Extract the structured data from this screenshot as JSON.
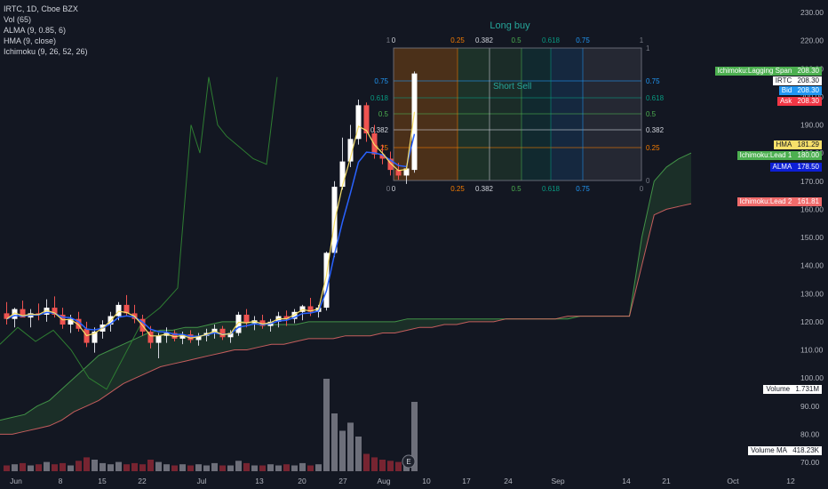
{
  "legend": {
    "symbol": "IRTC, 1D, Cboe BZX",
    "vol": "Vol (65)",
    "alma": "ALMA (9, 0.85, 6)",
    "hma": "HMA (9, close)",
    "ichimoku": "Ichimoku (9, 26, 52, 26)"
  },
  "fib": {
    "title": "Long buy",
    "short_label": "Short Sell",
    "top_labels": [
      "1",
      "0",
      "0.25",
      "0.382",
      "0.5",
      "0.618",
      "0.75",
      "1"
    ],
    "bottom_labels": [
      "0",
      "0",
      "0.25",
      "0.382",
      "0.5",
      "0.618",
      "0.75",
      "0"
    ],
    "left_labels": [
      "0.75",
      "0.618",
      "0.5",
      "0.382",
      "0.25"
    ],
    "right_labels": [
      "1",
      "0.75",
      "0.618",
      "0.5",
      "0.382",
      "0.25",
      "0"
    ],
    "colors": {
      "c025": "#f57c00",
      "c0382": "#d1d4dc",
      "c05": "#4caf50",
      "c0618": "#089981",
      "c075": "#2196f3",
      "c1": "#787b86"
    }
  },
  "tags": [
    {
      "label": "Ichimoku:Lagging Span",
      "value": "208.30",
      "bg": "#4caf50",
      "fg": "#ffffff"
    },
    {
      "label": "IRTC",
      "value": "208.30",
      "bg": "#ffffff",
      "fg": "#131722"
    },
    {
      "label": "Bid",
      "value": "208.30",
      "bg": "#2196f3",
      "fg": "#ffffff"
    },
    {
      "label": "Ask",
      "value": "208.30",
      "bg": "#f23645",
      "fg": "#ffffff"
    },
    {
      "label": "HMA",
      "value": "181.29",
      "bg": "#f7e06a",
      "fg": "#131722"
    },
    {
      "label": "Ichimoku:Lead 1",
      "value": "180.00",
      "bg": "#4caf50",
      "fg": "#ffffff"
    },
    {
      "label": "ALMA",
      "value": "178.50",
      "bg": "#0d1fd6",
      "fg": "#ffffff"
    },
    {
      "label": "Ichimoku:Lead 2",
      "value": "161.81",
      "bg": "#f06b6b",
      "fg": "#ffffff"
    },
    {
      "label": "Volume",
      "value": "1.731M",
      "bg": "#ffffff",
      "fg": "#131722"
    },
    {
      "label": "Volume MA",
      "value": "418.23K",
      "bg": "#ffffff",
      "fg": "#131722"
    }
  ],
  "chart_data": {
    "type": "candlestick",
    "title": "IRTC, 1D, Cboe BZX",
    "price_axis_ticks": [
      230,
      220,
      210,
      200,
      190,
      180,
      170,
      160,
      150,
      140,
      130,
      120,
      110,
      100,
      90,
      80,
      70
    ],
    "x_ticks": [
      "Jun",
      "8",
      "15",
      "22",
      "Jul",
      "13",
      "20",
      "27",
      "Aug",
      "10",
      "17",
      "24",
      "Sep",
      "14",
      "21",
      "Oct",
      "12"
    ],
    "event_marker": "E",
    "candles": [
      {
        "o": 123.0,
        "h": 127.0,
        "l": 119.0,
        "c": 121.0
      },
      {
        "o": 121.0,
        "h": 125.0,
        "l": 118.0,
        "c": 124.5
      },
      {
        "o": 124.5,
        "h": 127.5,
        "l": 122.0,
        "c": 121.5
      },
      {
        "o": 121.5,
        "h": 124.5,
        "l": 118.0,
        "c": 123.0
      },
      {
        "o": 123.0,
        "h": 126.5,
        "l": 120.5,
        "c": 122.5
      },
      {
        "o": 122.5,
        "h": 128.0,
        "l": 120.0,
        "c": 125.0
      },
      {
        "o": 125.0,
        "h": 129.0,
        "l": 121.5,
        "c": 122.5
      },
      {
        "o": 122.5,
        "h": 125.0,
        "l": 117.5,
        "c": 119.0
      },
      {
        "o": 119.0,
        "h": 122.5,
        "l": 116.0,
        "c": 121.0
      },
      {
        "o": 121.0,
        "h": 123.5,
        "l": 116.5,
        "c": 117.5
      },
      {
        "o": 117.5,
        "h": 120.0,
        "l": 111.0,
        "c": 112.5
      },
      {
        "o": 112.5,
        "h": 118.0,
        "l": 109.0,
        "c": 116.5
      },
      {
        "o": 116.5,
        "h": 120.5,
        "l": 114.0,
        "c": 119.0
      },
      {
        "o": 119.0,
        "h": 123.5,
        "l": 116.5,
        "c": 122.0
      },
      {
        "o": 122.0,
        "h": 127.0,
        "l": 120.5,
        "c": 126.0
      },
      {
        "o": 126.0,
        "h": 129.5,
        "l": 122.0,
        "c": 123.0
      },
      {
        "o": 123.0,
        "h": 126.0,
        "l": 119.5,
        "c": 121.0
      },
      {
        "o": 121.0,
        "h": 122.5,
        "l": 115.0,
        "c": 116.5
      },
      {
        "o": 116.5,
        "h": 118.5,
        "l": 110.5,
        "c": 112.5
      },
      {
        "o": 112.5,
        "h": 116.0,
        "l": 107.0,
        "c": 115.0
      },
      {
        "o": 115.0,
        "h": 118.0,
        "l": 112.5,
        "c": 116.0
      },
      {
        "o": 116.0,
        "h": 117.0,
        "l": 113.0,
        "c": 114.0
      },
      {
        "o": 114.0,
        "h": 116.5,
        "l": 112.0,
        "c": 115.5
      },
      {
        "o": 115.5,
        "h": 117.0,
        "l": 112.5,
        "c": 113.5
      },
      {
        "o": 113.5,
        "h": 116.0,
        "l": 111.5,
        "c": 115.0
      },
      {
        "o": 115.0,
        "h": 117.5,
        "l": 113.0,
        "c": 116.0
      },
      {
        "o": 116.0,
        "h": 119.0,
        "l": 114.0,
        "c": 117.5
      },
      {
        "o": 117.5,
        "h": 118.5,
        "l": 113.5,
        "c": 114.5
      },
      {
        "o": 114.5,
        "h": 117.0,
        "l": 112.5,
        "c": 116.0
      },
      {
        "o": 116.0,
        "h": 123.5,
        "l": 115.0,
        "c": 122.5
      },
      {
        "o": 122.5,
        "h": 124.5,
        "l": 118.0,
        "c": 119.5
      },
      {
        "o": 119.5,
        "h": 122.0,
        "l": 117.0,
        "c": 120.5
      },
      {
        "o": 120.5,
        "h": 122.5,
        "l": 117.5,
        "c": 118.5
      },
      {
        "o": 118.5,
        "h": 121.0,
        "l": 116.5,
        "c": 120.0
      },
      {
        "o": 120.0,
        "h": 123.5,
        "l": 118.0,
        "c": 122.0
      },
      {
        "o": 122.0,
        "h": 124.0,
        "l": 118.5,
        "c": 121.0
      },
      {
        "o": 121.0,
        "h": 124.5,
        "l": 119.5,
        "c": 123.5
      },
      {
        "o": 123.5,
        "h": 126.0,
        "l": 120.5,
        "c": 125.5
      },
      {
        "o": 125.5,
        "h": 128.5,
        "l": 122.0,
        "c": 123.5
      },
      {
        "o": 123.5,
        "h": 126.0,
        "l": 121.5,
        "c": 125.0
      },
      {
        "o": 125.0,
        "h": 145.0,
        "l": 124.0,
        "c": 144.5
      },
      {
        "o": 144.5,
        "h": 170.0,
        "l": 143.0,
        "c": 168.0
      },
      {
        "o": 168.0,
        "h": 185.5,
        "l": 167.0,
        "c": 177.0
      },
      {
        "o": 177.0,
        "h": 190.0,
        "l": 175.0,
        "c": 185.0
      },
      {
        "o": 185.0,
        "h": 199.0,
        "l": 183.0,
        "c": 197.0
      },
      {
        "o": 197.0,
        "h": 198.0,
        "l": 184.0,
        "c": 187.0
      },
      {
        "o": 187.0,
        "h": 190.0,
        "l": 178.0,
        "c": 179.5
      },
      {
        "o": 179.5,
        "h": 183.0,
        "l": 176.0,
        "c": 178.0
      },
      {
        "o": 178.0,
        "h": 180.5,
        "l": 172.0,
        "c": 174.0
      },
      {
        "o": 174.0,
        "h": 176.5,
        "l": 170.5,
        "c": 172.0
      },
      {
        "o": 172.0,
        "h": 175.0,
        "l": 169.0,
        "c": 174.5
      },
      {
        "o": 174.0,
        "h": 209.0,
        "l": 173.0,
        "c": 208.3
      }
    ],
    "volume_relative": [
      0.05,
      0.06,
      0.07,
      0.05,
      0.06,
      0.08,
      0.06,
      0.07,
      0.05,
      0.09,
      0.12,
      0.1,
      0.07,
      0.06,
      0.08,
      0.06,
      0.07,
      0.06,
      0.1,
      0.08,
      0.06,
      0.05,
      0.06,
      0.05,
      0.06,
      0.05,
      0.07,
      0.05,
      0.05,
      0.09,
      0.07,
      0.05,
      0.05,
      0.06,
      0.05,
      0.06,
      0.05,
      0.07,
      0.05,
      0.06,
      0.8,
      0.5,
      0.35,
      0.42,
      0.3,
      0.15,
      0.12,
      0.1,
      0.09,
      0.08,
      0.07,
      0.6
    ],
    "ichimoku_lead1": [
      85,
      86,
      87,
      90,
      92,
      96,
      100,
      104,
      108,
      110,
      112,
      114,
      116,
      117,
      117,
      118,
      118,
      119,
      120,
      120,
      120,
      119,
      119,
      119,
      119,
      120,
      120,
      120,
      120,
      120,
      120,
      120,
      120,
      121,
      121,
      121,
      121,
      121,
      121,
      121,
      121,
      121,
      121,
      121,
      121,
      121,
      121,
      122,
      122,
      122,
      122,
      122,
      150,
      170,
      175,
      178,
      180
    ],
    "ichimoku_lead2": [
      80,
      80,
      81,
      82,
      83,
      85,
      88,
      90,
      92,
      95,
      98,
      100,
      102,
      104,
      105,
      106,
      107,
      108,
      109,
      110,
      110,
      111,
      112,
      112,
      113,
      114,
      114,
      114,
      115,
      115,
      115,
      116,
      116,
      117,
      118,
      118,
      119,
      119,
      120,
      120,
      120,
      121,
      121,
      121,
      121,
      121,
      122,
      122,
      122,
      122,
      122,
      122,
      140,
      158,
      160,
      161,
      162
    ]
  }
}
